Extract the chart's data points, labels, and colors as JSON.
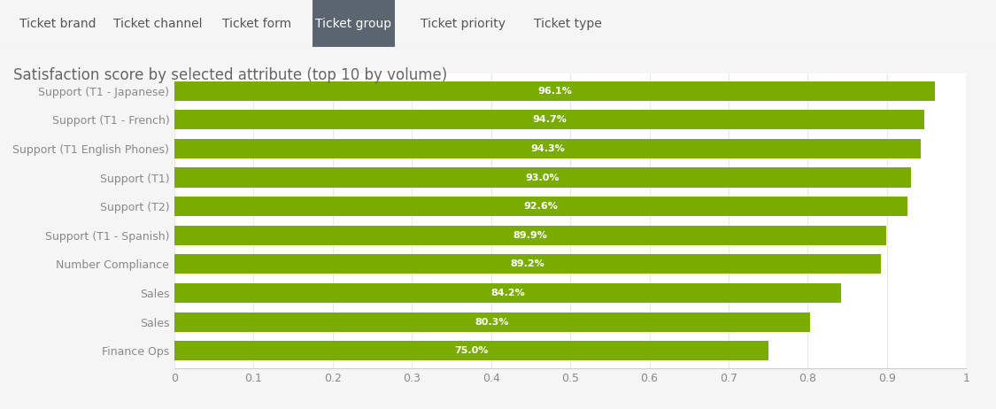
{
  "title": "Satisfaction score by selected attribute (top 10 by volume)",
  "categories": [
    "Support (T1 - Japanese)",
    "Support (T1 - French)",
    "Support (T1 English Phones)",
    "Support (T1)",
    "Support (T2)",
    "Support (T1 - Spanish)",
    "Number Compliance",
    "Sales",
    "Sales",
    "Finance Ops"
  ],
  "values": [
    0.961,
    0.947,
    0.943,
    0.93,
    0.926,
    0.899,
    0.892,
    0.842,
    0.803,
    0.75
  ],
  "labels": [
    "96.1%",
    "94.7%",
    "94.3%",
    "93.0%",
    "92.6%",
    "89.9%",
    "89.2%",
    "84.2%",
    "80.3%",
    "75.0%"
  ],
  "bar_color": "#7aab00",
  "bar_text_color": "#ffffff",
  "background_color": "#f5f5f5",
  "chart_bg_color": "#ffffff",
  "title_color": "#666666",
  "label_color": "#888888",
  "xlim": [
    0,
    1
  ],
  "xticks": [
    0,
    0.1,
    0.2,
    0.3,
    0.4,
    0.5,
    0.6,
    0.7,
    0.8,
    0.9,
    1.0
  ],
  "xtick_labels": [
    "0",
    "0.1",
    "0.2",
    "0.3",
    "0.4",
    "0.5",
    "0.6",
    "0.7",
    "0.8",
    "0.9",
    "1"
  ],
  "tab_labels": [
    "Ticket brand",
    "Ticket channel",
    "Ticket form",
    "Ticket group",
    "Ticket priority",
    "Ticket type"
  ],
  "active_tab": "Ticket group",
  "active_tab_color": "#5a6570",
  "active_tab_text_color": "#ffffff",
  "inactive_tab_text_color": "#555555",
  "tab_bar_bg": "#eeeeee",
  "title_fontsize": 12,
  "bar_label_fontsize": 8,
  "ytick_fontsize": 9,
  "xtick_fontsize": 9,
  "tab_fontsize": 10
}
